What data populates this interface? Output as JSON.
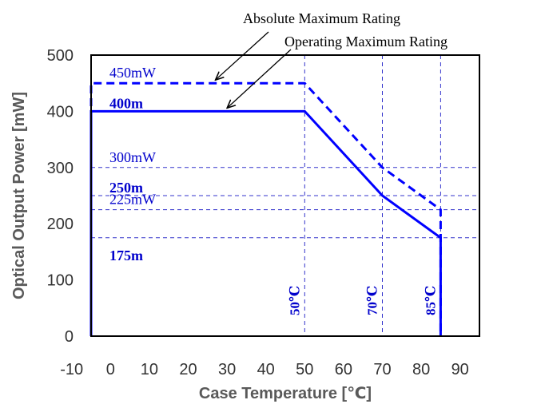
{
  "chart_data": {
    "type": "line",
    "xlabel": "Case Temperature [℃]",
    "ylabel": "Optical Output Power [mW]",
    "xlim": [
      -10,
      90
    ],
    "ylim": [
      0,
      500
    ],
    "x_ticks": [
      "-10",
      "0",
      "10",
      "20",
      "30",
      "40",
      "50",
      "60",
      "70",
      "80",
      "90"
    ],
    "y_ticks": [
      "0",
      "100",
      "200",
      "300",
      "400",
      "500"
    ],
    "grid": false,
    "series": [
      {
        "name": "Absolute Maximum Rating",
        "style": "dashed",
        "color": "#0000ff",
        "points": [
          [
            -5,
            0
          ],
          [
            -5,
            450
          ],
          [
            50,
            450
          ],
          [
            70,
            300
          ],
          [
            85,
            225
          ],
          [
            85,
            0
          ]
        ]
      },
      {
        "name": "Operating Maximum Rating",
        "style": "solid",
        "color": "#0000ff",
        "points": [
          [
            -5,
            0
          ],
          [
            -5,
            400
          ],
          [
            50,
            400
          ],
          [
            70,
            250
          ],
          [
            85,
            175
          ],
          [
            85,
            0
          ]
        ]
      }
    ],
    "level_labels": [
      {
        "text": "450mW",
        "y": 450,
        "style": "normal"
      },
      {
        "text": "400m",
        "y": 400,
        "style": "bold"
      },
      {
        "text": "300mW",
        "y": 300,
        "style": "normal"
      },
      {
        "text": "250m",
        "y": 250,
        "style": "bold"
      },
      {
        "text": "225mW",
        "y": 225,
        "style": "normal"
      },
      {
        "text": "175m",
        "y": 175,
        "style": "bold"
      }
    ],
    "temperature_labels": [
      {
        "text": "50℃",
        "x": 50
      },
      {
        "text": "70℃",
        "x": 70
      },
      {
        "text": "85℃",
        "x": 85
      }
    ],
    "guide_lines": {
      "horizontal": [
        300,
        250,
        225,
        175
      ],
      "vertical": [
        50,
        70,
        85
      ]
    },
    "annotations": [
      {
        "text": "Absolute Maximum Rating",
        "points_to": [
          27,
          450
        ]
      },
      {
        "text": "Operating Maximum Rating",
        "points_to": [
          30,
          400
        ]
      }
    ]
  }
}
